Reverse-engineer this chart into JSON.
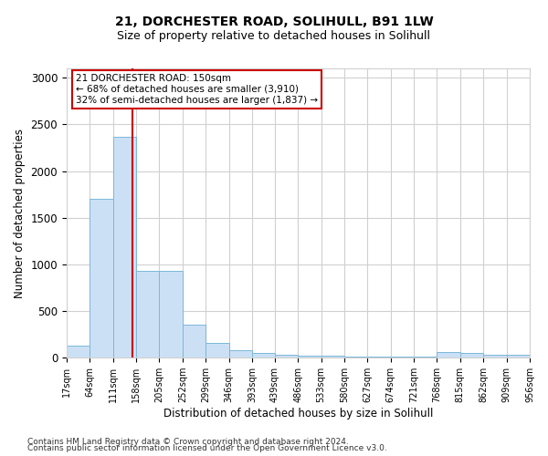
{
  "title1": "21, DORCHESTER ROAD, SOLIHULL, B91 1LW",
  "title2": "Size of property relative to detached houses in Solihull",
  "xlabel": "Distribution of detached houses by size in Solihull",
  "ylabel": "Number of detached properties",
  "bar_edges": [
    17,
    64,
    111,
    158,
    205,
    252,
    299,
    346,
    393,
    439,
    486,
    533,
    580,
    627,
    674,
    721,
    768,
    815,
    862,
    909,
    956
  ],
  "bar_heights": [
    130,
    1700,
    2370,
    930,
    930,
    350,
    160,
    80,
    50,
    35,
    25,
    20,
    15,
    10,
    10,
    8,
    60,
    50,
    35,
    35
  ],
  "bar_color": "#cce0f5",
  "bar_edge_color": "#7ab8d9",
  "property_size": 150,
  "vline_color": "#cc0000",
  "annotation_text": "21 DORCHESTER ROAD: 150sqm\n← 68% of detached houses are smaller (3,910)\n32% of semi-detached houses are larger (1,837) →",
  "annotation_box_color": "#ffffff",
  "annotation_box_edge": "#cc0000",
  "ylim": [
    0,
    3100
  ],
  "yticks": [
    0,
    500,
    1000,
    1500,
    2000,
    2500,
    3000
  ],
  "footnote1": "Contains HM Land Registry data © Crown copyright and database right 2024.",
  "footnote2": "Contains public sector information licensed under the Open Government Licence v3.0.",
  "background_color": "#ffffff",
  "grid_color": "#d0d0d0"
}
